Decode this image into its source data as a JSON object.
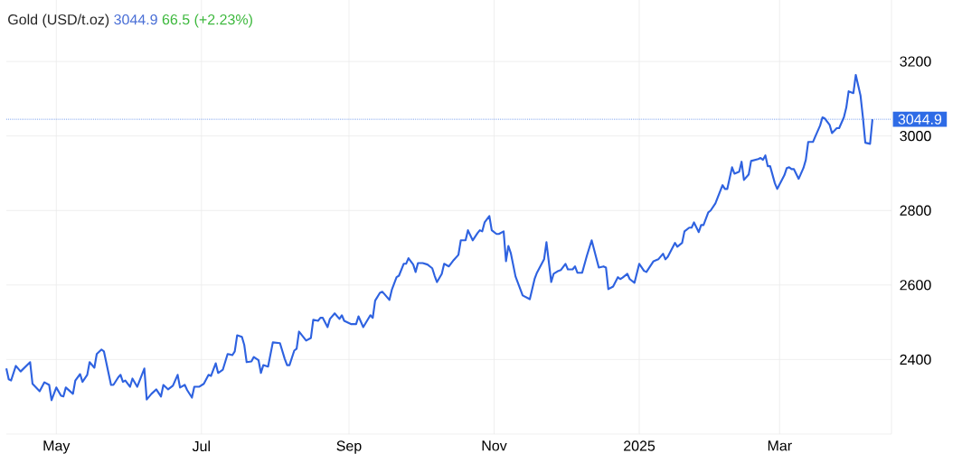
{
  "chart_data": {
    "type": "line",
    "title": "Gold (USD/t.oz)",
    "annotations": [
      "3044.9",
      "66.5 (+2.23%)"
    ],
    "color": "#2e62e0",
    "x": [
      "2024-04-10",
      "2024-04-11",
      "2024-04-12",
      "2024-04-14",
      "2024-04-16",
      "2024-04-20",
      "2024-04-21",
      "2024-04-24",
      "2024-04-26",
      "2024-04-28",
      "2024-04-29",
      "2024-05-01",
      "2024-05-03",
      "2024-05-04",
      "2024-05-05",
      "2024-05-08",
      "2024-05-09",
      "2024-05-11",
      "2024-05-12",
      "2024-05-14",
      "2024-05-15",
      "2024-05-17",
      "2024-05-18",
      "2024-05-20",
      "2024-05-21",
      "2024-05-24",
      "2024-05-25",
      "2024-05-27",
      "2024-05-28",
      "2024-05-29",
      "2024-05-30",
      "2024-06-01",
      "2024-06-02",
      "2024-06-04",
      "2024-06-07",
      "2024-06-08",
      "2024-06-10",
      "2024-06-12",
      "2024-06-14",
      "2024-06-15",
      "2024-06-17",
      "2024-06-19",
      "2024-06-21",
      "2024-06-22",
      "2024-06-24",
      "2024-06-25",
      "2024-06-27",
      "2024-06-28",
      "2024-06-30",
      "2024-07-02",
      "2024-07-04",
      "2024-07-05",
      "2024-07-07",
      "2024-07-08",
      "2024-07-10",
      "2024-07-12",
      "2024-07-14",
      "2024-07-15",
      "2024-07-16",
      "2024-07-18",
      "2024-07-19",
      "2024-07-20",
      "2024-07-22",
      "2024-07-23",
      "2024-07-25",
      "2024-07-26",
      "2024-07-27",
      "2024-07-29",
      "2024-07-31",
      "2024-08-03",
      "2024-08-05",
      "2024-08-06",
      "2024-08-07",
      "2024-08-09",
      "2024-08-10",
      "2024-08-11",
      "2024-08-14",
      "2024-08-16",
      "2024-08-17",
      "2024-08-19",
      "2024-08-20",
      "2024-08-21",
      "2024-08-23",
      "2024-08-24",
      "2024-08-26",
      "2024-08-28",
      "2024-08-29",
      "2024-08-30",
      "2024-09-02",
      "2024-09-04",
      "2024-09-05",
      "2024-09-07",
      "2024-09-10",
      "2024-09-11",
      "2024-09-12",
      "2024-09-14",
      "2024-09-15",
      "2024-09-16",
      "2024-09-18",
      "2024-09-19",
      "2024-09-21",
      "2024-09-22",
      "2024-09-24",
      "2024-09-25",
      "2024-09-26",
      "2024-09-28",
      "2024-09-29",
      "2024-09-30",
      "2024-10-02",
      "2024-10-04",
      "2024-10-06",
      "2024-10-07",
      "2024-10-08",
      "2024-10-10",
      "2024-10-11",
      "2024-10-13",
      "2024-10-15",
      "2024-10-17",
      "2024-10-18",
      "2024-10-20",
      "2024-10-21",
      "2024-10-23",
      "2024-10-25",
      "2024-10-26",
      "2024-10-27",
      "2024-10-28",
      "2024-10-30",
      "2024-10-31",
      "2024-11-02",
      "2024-11-03",
      "2024-11-05",
      "2024-11-06",
      "2024-11-07",
      "2024-11-08",
      "2024-11-10",
      "2024-11-13",
      "2024-11-16",
      "2024-11-18",
      "2024-11-19",
      "2024-11-22",
      "2024-11-23",
      "2024-11-25",
      "2024-11-26",
      "2024-11-28",
      "2024-11-29",
      "2024-12-01",
      "2024-12-02",
      "2024-12-04",
      "2024-12-05",
      "2024-12-06",
      "2024-12-08",
      "2024-12-10",
      "2024-12-12",
      "2024-12-15",
      "2024-12-17",
      "2024-12-18",
      "2024-12-19",
      "2024-12-21",
      "2024-12-23",
      "2024-12-24",
      "2024-12-25",
      "2024-12-27",
      "2024-12-28",
      "2024-12-30",
      "2025-01-01",
      "2025-01-03",
      "2025-01-04",
      "2025-01-07",
      "2025-01-09",
      "2025-01-11",
      "2025-01-12",
      "2025-01-13",
      "2025-01-16",
      "2025-01-17",
      "2025-01-19",
      "2025-01-20",
      "2025-01-22",
      "2025-01-23",
      "2025-01-24",
      "2025-01-26",
      "2025-01-27",
      "2025-01-28",
      "2025-01-30",
      "2025-01-31",
      "2025-02-02",
      "2025-02-05",
      "2025-02-06",
      "2025-02-07",
      "2025-02-09",
      "2025-02-10",
      "2025-02-12",
      "2025-02-13",
      "2025-02-14",
      "2025-02-16",
      "2025-02-17",
      "2025-02-20",
      "2025-02-21",
      "2025-02-22",
      "2025-02-23",
      "2025-02-24",
      "2025-02-25",
      "2025-02-27",
      "2025-02-28",
      "2025-03-03",
      "2025-03-04",
      "2025-03-05",
      "2025-03-06",
      "2025-03-07",
      "2025-03-09",
      "2025-03-11",
      "2025-03-12",
      "2025-03-13",
      "2025-03-15",
      "2025-03-16",
      "2025-03-18",
      "2025-03-19",
      "2025-03-20",
      "2025-03-22",
      "2025-03-23",
      "2025-03-25",
      "2025-03-26",
      "2025-03-28",
      "2025-03-29",
      "2025-03-30",
      "2025-04-01",
      "2025-04-02",
      "2025-04-04",
      "2025-04-05",
      "2025-04-06",
      "2025-04-08",
      "2025-04-09"
    ],
    "values": [
      2376,
      2347,
      2344,
      2383,
      2368,
      2393,
      2335,
      2315,
      2339,
      2332,
      2291,
      2325,
      2303,
      2301,
      2325,
      2308,
      2344,
      2361,
      2340,
      2359,
      2393,
      2378,
      2415,
      2427,
      2422,
      2332,
      2332,
      2352,
      2359,
      2340,
      2344,
      2327,
      2349,
      2327,
      2376,
      2293,
      2308,
      2320,
      2301,
      2332,
      2320,
      2330,
      2359,
      2325,
      2332,
      2318,
      2298,
      2327,
      2327,
      2335,
      2359,
      2356,
      2390,
      2364,
      2373,
      2415,
      2412,
      2422,
      2465,
      2461,
      2439,
      2393,
      2395,
      2407,
      2398,
      2364,
      2385,
      2381,
      2446,
      2444,
      2402,
      2385,
      2385,
      2424,
      2429,
      2475,
      2451,
      2458,
      2507,
      2504,
      2512,
      2512,
      2487,
      2509,
      2524,
      2509,
      2519,
      2504,
      2495,
      2495,
      2516,
      2487,
      2519,
      2512,
      2558,
      2579,
      2582,
      2575,
      2560,
      2587,
      2621,
      2625,
      2657,
      2657,
      2672,
      2655,
      2635,
      2659,
      2659,
      2655,
      2645,
      2625,
      2608,
      2630,
      2657,
      2650,
      2667,
      2681,
      2720,
      2720,
      2747,
      2720,
      2739,
      2747,
      2744,
      2768,
      2785,
      2747,
      2737,
      2737,
      2744,
      2664,
      2705,
      2686,
      2623,
      2572,
      2562,
      2616,
      2633,
      2669,
      2715,
      2608,
      2630,
      2638,
      2640,
      2657,
      2642,
      2642,
      2650,
      2633,
      2633,
      2679,
      2720,
      2647,
      2650,
      2647,
      2589,
      2596,
      2621,
      2616,
      2620,
      2630,
      2616,
      2606,
      2657,
      2638,
      2635,
      2664,
      2669,
      2684,
      2669,
      2676,
      2713,
      2703,
      2713,
      2744,
      2754,
      2754,
      2768,
      2742,
      2761,
      2761,
      2795,
      2800,
      2819,
      2868,
      2858,
      2858,
      2916,
      2899,
      2904,
      2931,
      2882,
      2897,
      2933,
      2938,
      2941,
      2936,
      2948,
      2919,
      2919,
      2873,
      2858,
      2895,
      2914,
      2916,
      2911,
      2911,
      2885,
      2914,
      2936,
      2984,
      2984,
      2999,
      3028,
      3050,
      3047,
      3030,
      3008,
      3021,
      3021,
      3050,
      3076,
      3120,
      3115,
      3164,
      3108,
      3050,
      2982,
      2979,
      3044.9
    ],
    "xlim": [
      "2024-04-10",
      "2025-04-17"
    ],
    "xticks": [
      {
        "value": "2024-05-01",
        "label": "May"
      },
      {
        "value": "2024-07-01",
        "label": "Jul"
      },
      {
        "value": "2024-09-01",
        "label": "Sep"
      },
      {
        "value": "2024-11-01",
        "label": "Nov"
      },
      {
        "value": "2025-01-01",
        "label": "2025"
      },
      {
        "value": "2025-03-01",
        "label": "Mar"
      }
    ],
    "ylim": [
      2200,
      3365
    ],
    "yticks": [
      2400,
      2600,
      2800,
      3000,
      3200
    ],
    "grid": true,
    "ref_lines": [
      {
        "axis": "y",
        "value": 3044.9,
        "label": "3044.9",
        "color": "#2e6be6",
        "line_style": "dotted"
      }
    ]
  }
}
